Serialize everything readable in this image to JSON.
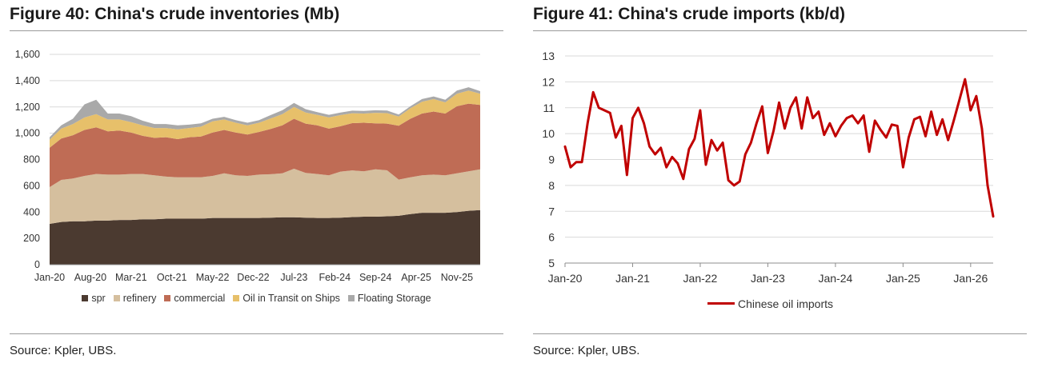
{
  "figures": {
    "left": {
      "title": "Figure 40: China's crude inventories (Mb)",
      "source": "Source: Kpler, UBS."
    },
    "right": {
      "title": "Figure 41: China's crude imports (kb/d)",
      "source": "Source: Kpler, UBS."
    }
  },
  "chart_data": [
    {
      "type": "area",
      "stacked": true,
      "title": "Figure 40: China's crude inventories (Mb)",
      "xlabel": "",
      "ylabel": "",
      "ylim": [
        0,
        1600
      ],
      "yticks": [
        "0",
        "200",
        "400",
        "600",
        "800",
        "1,000",
        "1,200",
        "1,400",
        "1,600"
      ],
      "xtick_labels": [
        "Jan-20",
        "Aug-20",
        "Mar-21",
        "Oct-21",
        "May-22",
        "Dec-22",
        "Jul-23",
        "Feb-24",
        "Sep-24",
        "Apr-25",
        "Nov-25"
      ],
      "grid": true,
      "legend_position": "bottom",
      "x": [
        "Jan-20",
        "Mar-20",
        "May-20",
        "Jul-20",
        "Sep-20",
        "Nov-20",
        "Jan-21",
        "Mar-21",
        "May-21",
        "Jul-21",
        "Sep-21",
        "Nov-21",
        "Jan-22",
        "Mar-22",
        "May-22",
        "Jul-22",
        "Sep-22",
        "Nov-22",
        "Jan-23",
        "Mar-23",
        "May-23",
        "Jul-23",
        "Sep-23",
        "Nov-23",
        "Jan-24",
        "Mar-24",
        "May-24",
        "Jul-24",
        "Sep-24",
        "Nov-24",
        "Jan-25",
        "Mar-25",
        "May-25",
        "Jul-25",
        "Sep-25",
        "Nov-25",
        "Jan-26",
        "Mar-26"
      ],
      "series": [
        {
          "name": "spr",
          "color": "#4b3a30",
          "values": [
            310,
            325,
            330,
            330,
            335,
            335,
            340,
            340,
            345,
            345,
            350,
            350,
            350,
            350,
            355,
            355,
            355,
            355,
            355,
            358,
            360,
            360,
            358,
            355,
            355,
            358,
            362,
            365,
            365,
            368,
            372,
            385,
            395,
            395,
            395,
            400,
            410,
            415
          ]
        },
        {
          "name": "refinery",
          "color": "#d5bf9e",
          "values": [
            280,
            320,
            325,
            345,
            355,
            350,
            345,
            350,
            345,
            335,
            320,
            315,
            315,
            315,
            320,
            340,
            325,
            320,
            330,
            330,
            335,
            370,
            340,
            335,
            325,
            350,
            355,
            345,
            360,
            350,
            275,
            280,
            285,
            290,
            285,
            295,
            300,
            310
          ]
        },
        {
          "name": "commercial",
          "color": "#bf6c55",
          "values": [
            300,
            315,
            330,
            350,
            355,
            330,
            335,
            315,
            290,
            285,
            300,
            290,
            305,
            310,
            330,
            330,
            325,
            315,
            325,
            345,
            365,
            380,
            375,
            370,
            355,
            345,
            360,
            370,
            350,
            355,
            410,
            445,
            470,
            480,
            470,
            510,
            515,
            490
          ]
        },
        {
          "name": "Oil in Transit on Ships",
          "color": "#e7c06a",
          "values": [
            60,
            75,
            85,
            95,
            100,
            90,
            85,
            80,
            80,
            75,
            70,
            75,
            70,
            75,
            85,
            80,
            75,
            70,
            70,
            80,
            85,
            90,
            85,
            80,
            85,
            85,
            75,
            70,
            80,
            80,
            70,
            80,
            90,
            95,
            85,
            95,
            100,
            85
          ]
        },
        {
          "name": "Floating Storage",
          "color": "#a9a9a9",
          "values": [
            20,
            25,
            40,
            100,
            110,
            45,
            45,
            45,
            35,
            30,
            30,
            30,
            25,
            25,
            20,
            20,
            20,
            20,
            20,
            25,
            30,
            30,
            25,
            20,
            20,
            20,
            20,
            20,
            20,
            20,
            15,
            15,
            20,
            20,
            20,
            25,
            25,
            20
          ]
        }
      ]
    },
    {
      "type": "line",
      "title": "Figure 41: China's crude imports (kb/d)",
      "xlabel": "",
      "ylabel": "",
      "ylim": [
        5,
        13
      ],
      "yticks": [
        "5",
        "6",
        "7",
        "8",
        "9",
        "10",
        "11",
        "12",
        "13"
      ],
      "xtick_labels": [
        "Jan-20",
        "Jan-21",
        "Jan-22",
        "Jan-23",
        "Jan-24",
        "Jan-25",
        "Jan-26"
      ],
      "grid": true,
      "legend_position": "bottom",
      "x": [
        "2020-01",
        "2020-02",
        "2020-03",
        "2020-04",
        "2020-05",
        "2020-06",
        "2020-07",
        "2020-08",
        "2020-09",
        "2020-10",
        "2020-11",
        "2020-12",
        "2021-01",
        "2021-02",
        "2021-03",
        "2021-04",
        "2021-05",
        "2021-06",
        "2021-07",
        "2021-08",
        "2021-09",
        "2021-10",
        "2021-11",
        "2021-12",
        "2022-01",
        "2022-02",
        "2022-03",
        "2022-04",
        "2022-05",
        "2022-06",
        "2022-07",
        "2022-08",
        "2022-09",
        "2022-10",
        "2022-11",
        "2022-12",
        "2023-01",
        "2023-02",
        "2023-03",
        "2023-04",
        "2023-05",
        "2023-06",
        "2023-07",
        "2023-08",
        "2023-09",
        "2023-10",
        "2023-11",
        "2023-12",
        "2024-01",
        "2024-02",
        "2024-03",
        "2024-04",
        "2024-05",
        "2024-06",
        "2024-07",
        "2024-08",
        "2024-09",
        "2024-10",
        "2024-11",
        "2024-12",
        "2025-01",
        "2025-02",
        "2025-03",
        "2025-04",
        "2025-05",
        "2025-06",
        "2025-07",
        "2025-08",
        "2025-09",
        "2025-10",
        "2025-11",
        "2025-12",
        "2026-01",
        "2026-02",
        "2026-03",
        "2026-04",
        "2026-05"
      ],
      "series": [
        {
          "name": "Chinese oil imports",
          "color": "#c00000",
          "values": [
            9.5,
            8.7,
            8.9,
            8.9,
            10.4,
            11.6,
            11.0,
            10.9,
            10.8,
            9.85,
            10.3,
            8.4,
            10.6,
            11.0,
            10.4,
            9.5,
            9.2,
            9.45,
            8.7,
            9.1,
            8.85,
            8.25,
            9.4,
            9.8,
            10.9,
            8.8,
            9.75,
            9.35,
            9.65,
            8.2,
            8.0,
            8.15,
            9.2,
            9.65,
            10.4,
            11.05,
            9.25,
            10.1,
            11.2,
            10.2,
            11.0,
            11.4,
            10.2,
            11.4,
            10.6,
            10.85,
            9.95,
            10.4,
            9.9,
            10.3,
            10.6,
            10.7,
            10.4,
            10.7,
            9.3,
            10.5,
            10.15,
            9.85,
            10.35,
            10.3,
            8.7,
            9.85,
            10.55,
            10.65,
            9.9,
            10.85,
            9.95,
            10.55,
            9.75,
            10.5,
            11.3,
            12.1,
            10.9,
            11.45,
            10.2,
            8.0,
            6.8
          ]
        }
      ]
    }
  ]
}
